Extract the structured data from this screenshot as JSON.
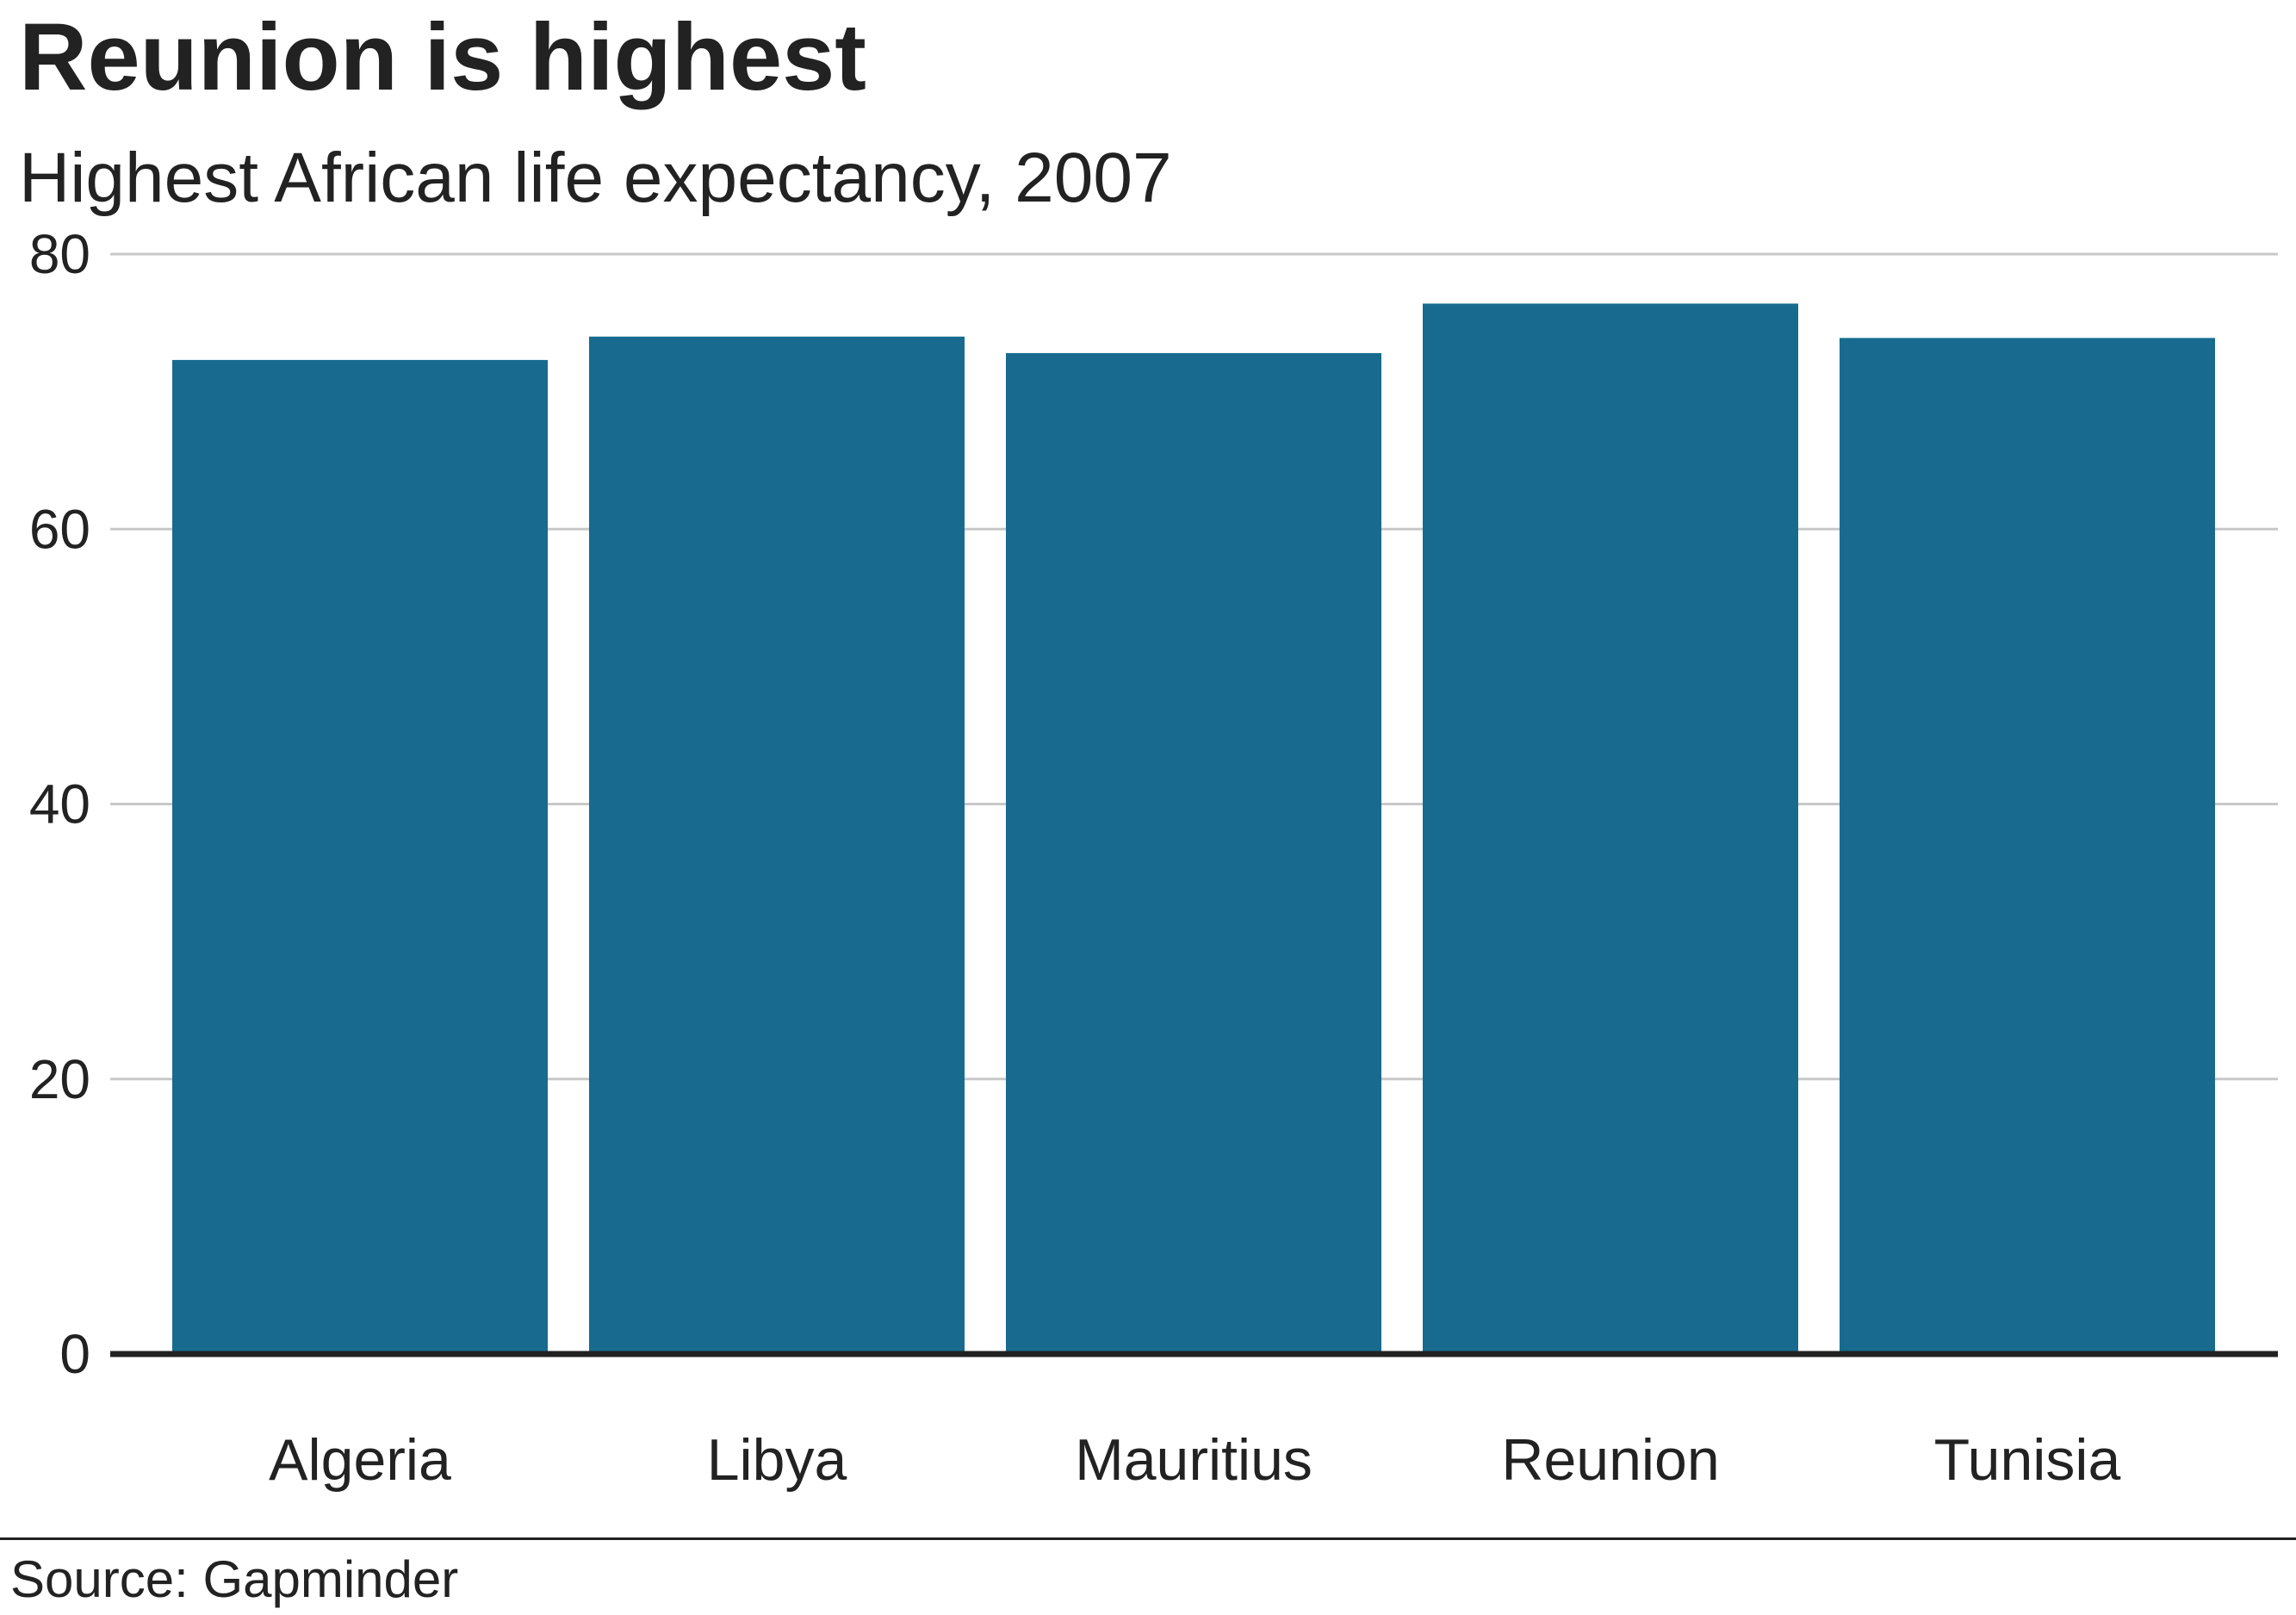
{
  "title": "Reunion is highest",
  "subtitle": "Highest African life expectancy, 2007",
  "source": "Source: Gapminder",
  "colors": {
    "bar": "#186b8f",
    "grid": "#c8c8c8",
    "baseline": "#222222",
    "text": "#222222"
  },
  "chart_data": {
    "type": "bar",
    "title": "Reunion is highest",
    "subtitle": "Highest African life expectancy, 2007",
    "xlabel": "",
    "ylabel": "",
    "categories": [
      "Algeria",
      "Libya",
      "Mauritius",
      "Reunion",
      "Tunisia"
    ],
    "values": [
      72.3,
      74.0,
      72.8,
      76.4,
      73.9
    ],
    "ylim": [
      0,
      80
    ],
    "yticks": [
      0,
      20,
      40,
      60,
      80
    ],
    "grid": true,
    "legend": "none"
  }
}
